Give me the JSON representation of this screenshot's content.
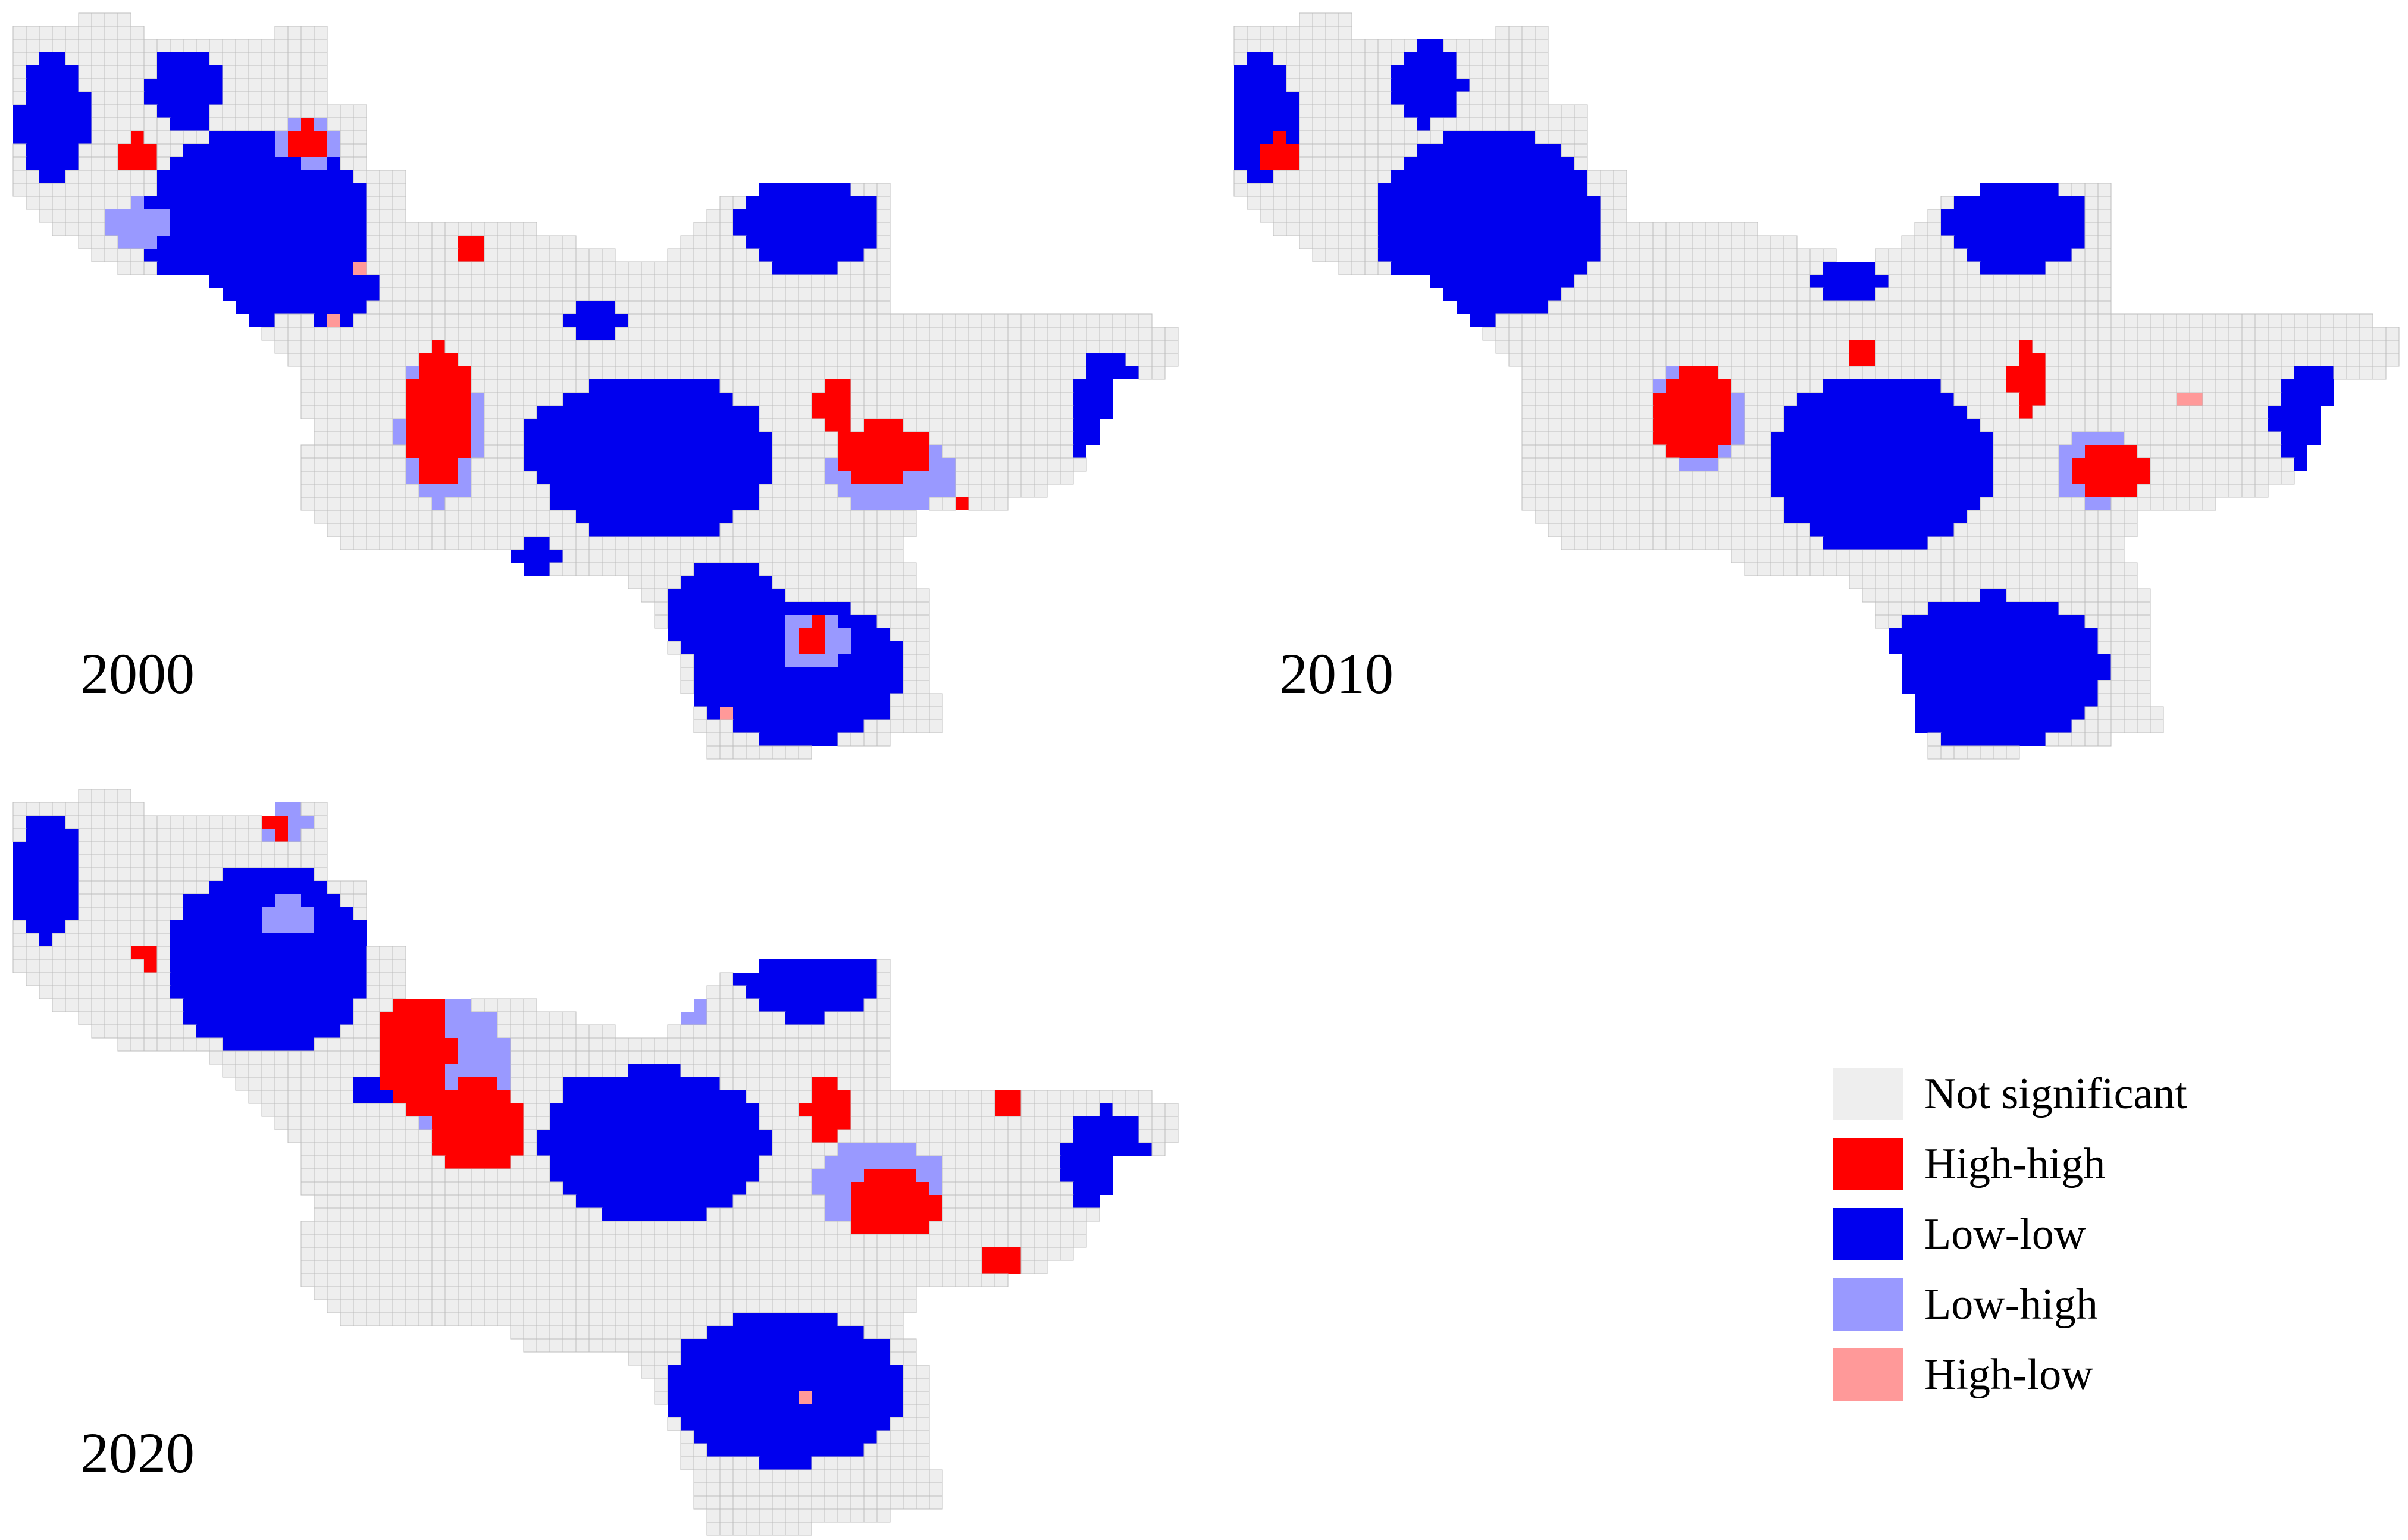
{
  "colors": {
    "not_significant": "#eeeeee",
    "high_high": "#ff0000",
    "low_low": "#0000ee",
    "low_high": "#9999ff",
    "high_low": "#ff9999",
    "grid_line": "#bdbdbd"
  },
  "panels": [
    {
      "id": "p2000",
      "year": "2000"
    },
    {
      "id": "p2010",
      "year": "2010"
    },
    {
      "id": "p2020",
      "year": "2020"
    }
  ],
  "legend": {
    "items": [
      {
        "label": "Not significant",
        "color_key": "not_significant"
      },
      {
        "label": "High-high",
        "color_key": "high_high"
      },
      {
        "label": "Low-low",
        "color_key": "low_low"
      },
      {
        "label": "Low-high",
        "color_key": "low_high"
      },
      {
        "label": "High-low",
        "color_key": "high_low"
      }
    ]
  }
}
